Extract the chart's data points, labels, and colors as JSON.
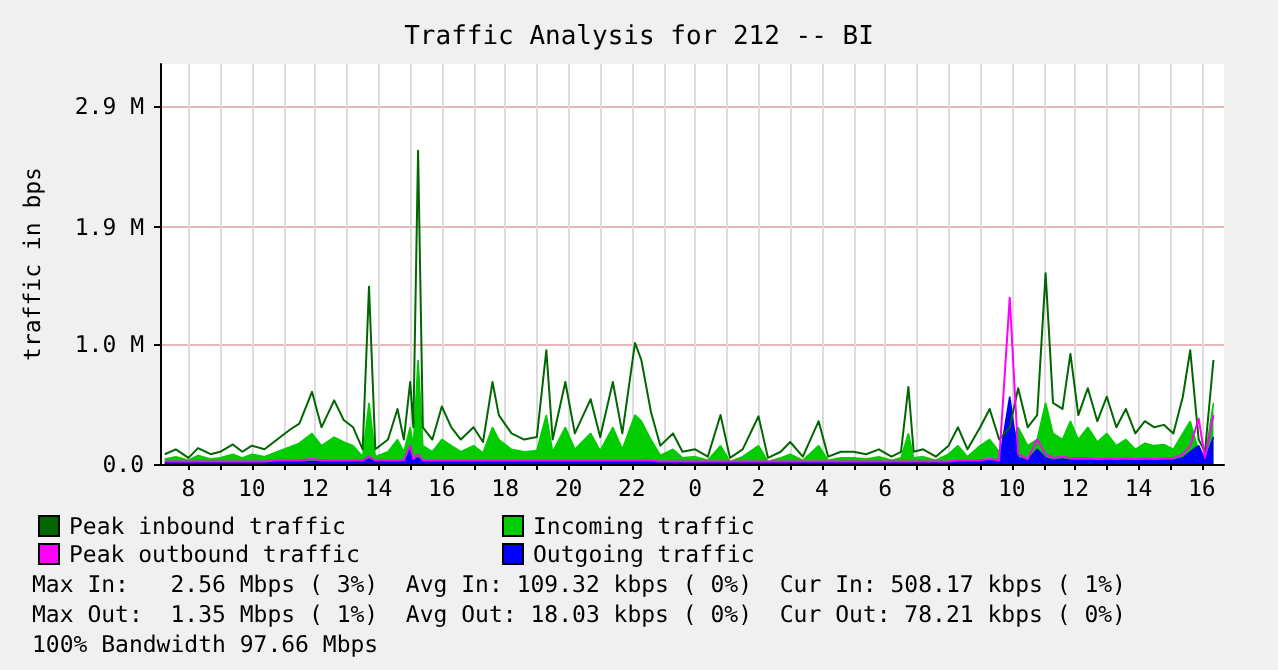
{
  "chart_data": {
    "type": "line",
    "title": "Traffic Analysis for 212 -- BI",
    "ylabel": "traffic in bps",
    "x": [
      "--01-01T07:15",
      "--01-01T07:36",
      "--01-01T08:00",
      "--01-01T08:18",
      "--01-01T08:42",
      "--01-01T09:00",
      "--01-01T09:24",
      "--01-01T09:42",
      "--01-01T10:00",
      "--01-01T10:24",
      "--01-01T10:48",
      "--01-01T11:12",
      "--01-01T11:30",
      "--01-01T11:54",
      "--01-01T12:12",
      "--01-01T12:36",
      "--01-01T12:54",
      "--01-01T13:12",
      "--01-01T13:30",
      "--01-01T13:42",
      "--01-01T13:54",
      "--01-01T14:18",
      "--01-01T14:36",
      "--01-01T14:48",
      "--01-01T15:00",
      "--01-01T15:06",
      "--01-01T15:15",
      "--01-01T15:24",
      "--01-01T15:42",
      "--01-01T16:00",
      "--01-01T16:18",
      "--01-01T16:36",
      "--01-01T17:00",
      "--01-01T17:18",
      "--01-01T17:36",
      "--01-01T17:48",
      "--01-01T18:12",
      "--01-01T18:36",
      "--01-01T19:00",
      "--01-01T19:18",
      "--01-01T19:30",
      "--01-01T19:54",
      "--01-01T20:12",
      "--01-01T20:42",
      "--01-01T21:00",
      "--01-01T21:24",
      "--01-01T21:42",
      "--01-01T22:06",
      "--01-01T22:18",
      "--01-01T22:36",
      "--01-01T22:54",
      "--01-01T23:18",
      "--01-01T23:36",
      "--01-02T00:00",
      "--01-02T00:24",
      "--01-02T00:48",
      "--01-02T01:06",
      "--01-02T01:30",
      "--01-02T02:00",
      "--01-02T02:18",
      "--01-02T02:42",
      "--01-02T03:00",
      "--01-02T03:24",
      "--01-02T03:54",
      "--01-02T04:12",
      "--01-02T04:36",
      "--01-02T05:00",
      "--01-02T05:24",
      "--01-02T05:48",
      "--01-02T06:12",
      "--01-02T06:30",
      "--01-02T06:44",
      "--01-02T06:54",
      "--01-02T07:12",
      "--01-02T07:36",
      "--01-02T08:00",
      "--01-02T08:18",
      "--01-02T08:36",
      "--01-02T09:00",
      "--01-02T09:18",
      "--01-02T09:36",
      "--01-02T09:56",
      "--01-02T10:12",
      "--01-02T10:30",
      "--01-02T10:48",
      "--01-02T11:04",
      "--01-02T11:18",
      "--01-02T11:36",
      "--01-02T11:51",
      "--01-02T12:06",
      "--01-02T12:24",
      "--01-02T12:42",
      "--01-02T13:00",
      "--01-02T13:18",
      "--01-02T13:36",
      "--01-02T13:54",
      "--01-02T14:12",
      "--01-02T14:30",
      "--01-02T14:48",
      "--01-02T15:06",
      "--01-02T15:24",
      "--01-02T15:38",
      "--01-02T15:54",
      "--01-02T16:06",
      "--01-02T16:22"
    ],
    "series": [
      {
        "name": "Peak inbound traffic",
        "type": "line",
        "color": "#006600",
        "values": [
          0.08,
          0.12,
          0.05,
          0.13,
          0.08,
          0.1,
          0.16,
          0.1,
          0.15,
          0.12,
          0.2,
          0.28,
          0.33,
          0.59,
          0.3,
          0.52,
          0.36,
          0.3,
          0.12,
          1.45,
          0.12,
          0.2,
          0.45,
          0.2,
          0.67,
          0.3,
          2.56,
          0.3,
          0.2,
          0.47,
          0.3,
          0.2,
          0.3,
          0.18,
          0.67,
          0.4,
          0.25,
          0.2,
          0.22,
          0.93,
          0.2,
          0.67,
          0.25,
          0.53,
          0.22,
          0.67,
          0.25,
          0.99,
          0.85,
          0.43,
          0.15,
          0.25,
          0.1,
          0.12,
          0.06,
          0.4,
          0.05,
          0.12,
          0.39,
          0.05,
          0.1,
          0.18,
          0.06,
          0.35,
          0.06,
          0.1,
          0.1,
          0.08,
          0.12,
          0.06,
          0.1,
          0.63,
          0.1,
          0.12,
          0.06,
          0.15,
          0.3,
          0.12,
          0.3,
          0.45,
          0.2,
          0.3,
          0.62,
          0.3,
          0.4,
          1.56,
          0.5,
          0.45,
          0.9,
          0.4,
          0.62,
          0.35,
          0.55,
          0.3,
          0.45,
          0.25,
          0.35,
          0.3,
          0.32,
          0.25,
          0.55,
          0.93,
          0.2,
          0.1,
          0.85
        ]
      },
      {
        "name": "Incoming traffic",
        "type": "area",
        "color": "#00cc00",
        "values": [
          0.04,
          0.06,
          0.03,
          0.07,
          0.04,
          0.05,
          0.08,
          0.05,
          0.08,
          0.06,
          0.1,
          0.14,
          0.17,
          0.25,
          0.15,
          0.22,
          0.18,
          0.15,
          0.06,
          0.5,
          0.06,
          0.1,
          0.2,
          0.1,
          0.3,
          0.15,
          0.85,
          0.15,
          0.1,
          0.2,
          0.15,
          0.1,
          0.15,
          0.09,
          0.3,
          0.2,
          0.12,
          0.1,
          0.11,
          0.4,
          0.1,
          0.3,
          0.12,
          0.25,
          0.11,
          0.3,
          0.12,
          0.4,
          0.35,
          0.2,
          0.07,
          0.12,
          0.05,
          0.06,
          0.03,
          0.15,
          0.02,
          0.06,
          0.15,
          0.02,
          0.05,
          0.08,
          0.03,
          0.15,
          0.03,
          0.05,
          0.05,
          0.04,
          0.06,
          0.03,
          0.05,
          0.25,
          0.05,
          0.06,
          0.03,
          0.08,
          0.15,
          0.06,
          0.15,
          0.2,
          0.1,
          0.15,
          0.3,
          0.15,
          0.2,
          0.5,
          0.25,
          0.2,
          0.35,
          0.2,
          0.3,
          0.18,
          0.25,
          0.15,
          0.2,
          0.12,
          0.17,
          0.15,
          0.16,
          0.12,
          0.25,
          0.35,
          0.1,
          0.05,
          0.5
        ]
      },
      {
        "name": "Peak outbound traffic",
        "type": "line",
        "color": "#ff00ff",
        "values": [
          0.02,
          0.02,
          0.02,
          0.02,
          0.02,
          0.02,
          0.02,
          0.02,
          0.02,
          0.02,
          0.03,
          0.03,
          0.03,
          0.04,
          0.03,
          0.03,
          0.03,
          0.03,
          0.03,
          0.06,
          0.03,
          0.03,
          0.03,
          0.03,
          0.15,
          0.04,
          0.08,
          0.03,
          0.03,
          0.03,
          0.03,
          0.03,
          0.03,
          0.03,
          0.03,
          0.03,
          0.03,
          0.03,
          0.03,
          0.03,
          0.03,
          0.03,
          0.03,
          0.03,
          0.03,
          0.03,
          0.03,
          0.03,
          0.03,
          0.03,
          0.02,
          0.02,
          0.02,
          0.02,
          0.02,
          0.02,
          0.02,
          0.02,
          0.02,
          0.02,
          0.02,
          0.02,
          0.02,
          0.02,
          0.02,
          0.02,
          0.02,
          0.02,
          0.02,
          0.02,
          0.02,
          0.02,
          0.02,
          0.02,
          0.02,
          0.02,
          0.03,
          0.03,
          0.03,
          0.04,
          0.03,
          1.36,
          0.08,
          0.04,
          0.2,
          0.08,
          0.05,
          0.06,
          0.05,
          0.05,
          0.05,
          0.04,
          0.05,
          0.04,
          0.05,
          0.04,
          0.05,
          0.04,
          0.05,
          0.05,
          0.08,
          0.15,
          0.37,
          0.05,
          0.4
        ]
      },
      {
        "name": "Outgoing traffic",
        "type": "area",
        "color": "#0000ff",
        "values": [
          0.01,
          0.01,
          0.01,
          0.01,
          0.01,
          0.01,
          0.01,
          0.01,
          0.01,
          0.01,
          0.02,
          0.02,
          0.02,
          0.02,
          0.02,
          0.02,
          0.02,
          0.02,
          0.02,
          0.04,
          0.02,
          0.02,
          0.02,
          0.02,
          0.12,
          0.03,
          0.05,
          0.02,
          0.02,
          0.02,
          0.02,
          0.02,
          0.02,
          0.02,
          0.02,
          0.02,
          0.02,
          0.02,
          0.02,
          0.02,
          0.02,
          0.02,
          0.02,
          0.02,
          0.02,
          0.02,
          0.02,
          0.02,
          0.02,
          0.02,
          0.01,
          0.01,
          0.01,
          0.01,
          0.01,
          0.01,
          0.01,
          0.01,
          0.01,
          0.01,
          0.01,
          0.01,
          0.01,
          0.01,
          0.01,
          0.01,
          0.01,
          0.01,
          0.01,
          0.01,
          0.01,
          0.01,
          0.01,
          0.01,
          0.01,
          0.01,
          0.02,
          0.02,
          0.02,
          0.03,
          0.02,
          0.55,
          0.05,
          0.03,
          0.12,
          0.05,
          0.03,
          0.04,
          0.03,
          0.03,
          0.03,
          0.03,
          0.03,
          0.03,
          0.03,
          0.03,
          0.03,
          0.03,
          0.03,
          0.03,
          0.05,
          0.1,
          0.15,
          0.03,
          0.22
        ]
      }
    ],
    "xlim": [
      "--01-01T07:06",
      "--01-02T16:42"
    ],
    "xticks": [
      {
        "value": "--01-01T08:00",
        "label": "8"
      },
      {
        "value": "--01-01T09:00",
        "label": null
      },
      {
        "value": "--01-01T10:00",
        "label": "10"
      },
      {
        "value": "--01-01T11:00",
        "label": null
      },
      {
        "value": "--01-01T12:00",
        "label": "12"
      },
      {
        "value": "--01-01T13:00",
        "label": null
      },
      {
        "value": "--01-01T14:00",
        "label": "14"
      },
      {
        "value": "--01-01T15:00",
        "label": null
      },
      {
        "value": "--01-01T16:00",
        "label": "16"
      },
      {
        "value": "--01-01T17:00",
        "label": null
      },
      {
        "value": "--01-01T18:00",
        "label": "18"
      },
      {
        "value": "--01-01T19:00",
        "label": null
      },
      {
        "value": "--01-01T20:00",
        "label": "20"
      },
      {
        "value": "--01-01T21:00",
        "label": null
      },
      {
        "value": "--01-01T22:00",
        "label": "22"
      },
      {
        "value": "--01-01T23:00",
        "label": null
      },
      {
        "value": "--01-02T00:00",
        "label": "0"
      },
      {
        "value": "--01-02T01:00",
        "label": null
      },
      {
        "value": "--01-02T02:00",
        "label": "2"
      },
      {
        "value": "--01-02T03:00",
        "label": null
      },
      {
        "value": "--01-02T04:00",
        "label": "4"
      },
      {
        "value": "--01-02T05:00",
        "label": null
      },
      {
        "value": "--01-02T06:00",
        "label": "6"
      },
      {
        "value": "--01-02T07:00",
        "label": null
      },
      {
        "value": "--01-02T08:00",
        "label": "8"
      },
      {
        "value": "--01-02T09:00",
        "label": null
      },
      {
        "value": "--01-02T10:00",
        "label": "10"
      },
      {
        "value": "--01-02T11:00",
        "label": null
      },
      {
        "value": "--01-02T12:00",
        "label": "12"
      },
      {
        "value": "--01-02T13:00",
        "label": null
      },
      {
        "value": "--01-02T14:00",
        "label": "14"
      },
      {
        "value": "--01-02T15:00",
        "label": null
      },
      {
        "value": "--01-02T16:00",
        "label": "16"
      }
    ],
    "ylim": [
      0,
      3.27
    ],
    "yticks": [
      {
        "value": 0,
        "label": "0.0"
      },
      {
        "value": 0.977,
        "label": "1.0 M"
      },
      {
        "value": 1.94,
        "label": "1.9 M"
      },
      {
        "value": 2.93,
        "label": "2.9 M"
      }
    ],
    "grid": true,
    "legend": "bottom left",
    "annotations": [
      "Max In:   2.56 Mbps ( 3%)  Avg In: 109.32 kbps ( 0%)  Cur In: 508.17 kbps ( 1%)",
      "Max Out:  1.35 Mbps ( 1%)  Avg Out: 18.03 kbps ( 0%)  Cur Out: 78.21 kbps ( 0%)",
      "100% Bandwidth 97.66 Mbps"
    ]
  }
}
